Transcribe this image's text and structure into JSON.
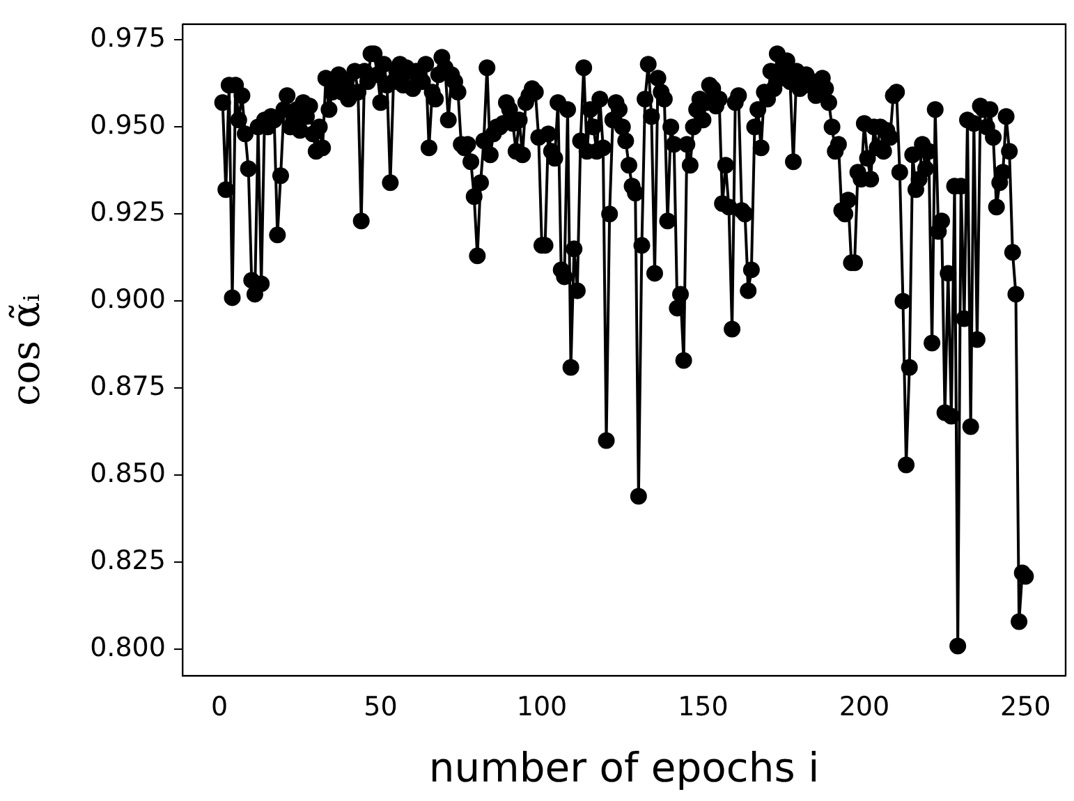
{
  "chart_data": {
    "type": "line",
    "xlabel": "number of epochs i",
    "ylabel": "cos α̃ᵢ",
    "marker": "circle",
    "line_style": "solid",
    "grid": false,
    "legend": false,
    "x": [
      1,
      2,
      3,
      4,
      5,
      6,
      7,
      8,
      9,
      10,
      11,
      12,
      13,
      14,
      15,
      16,
      17,
      18,
      19,
      20,
      21,
      22,
      23,
      24,
      25,
      26,
      27,
      28,
      29,
      30,
      31,
      32,
      33,
      34,
      35,
      36,
      37,
      38,
      39,
      40,
      41,
      42,
      43,
      44,
      45,
      46,
      47,
      48,
      49,
      50,
      51,
      52,
      53,
      54,
      55,
      56,
      57,
      58,
      59,
      60,
      61,
      62,
      63,
      64,
      65,
      66,
      67,
      68,
      69,
      70,
      71,
      72,
      73,
      74,
      75,
      76,
      77,
      78,
      79,
      80,
      81,
      82,
      83,
      84,
      85,
      86,
      87,
      88,
      89,
      90,
      91,
      92,
      93,
      94,
      95,
      96,
      97,
      98,
      99,
      100,
      101,
      102,
      103,
      104,
      105,
      106,
      107,
      108,
      109,
      110,
      111,
      112,
      113,
      114,
      115,
      116,
      117,
      118,
      119,
      120,
      121,
      122,
      123,
      124,
      125,
      126,
      127,
      128,
      129,
      130,
      131,
      132,
      133,
      134,
      135,
      136,
      137,
      138,
      139,
      140,
      141,
      142,
      143,
      144,
      145,
      146,
      147,
      148,
      149,
      150,
      151,
      152,
      153,
      154,
      155,
      156,
      157,
      158,
      159,
      160,
      161,
      162,
      163,
      164,
      165,
      166,
      167,
      168,
      169,
      170,
      171,
      172,
      173,
      174,
      175,
      176,
      177,
      178,
      179,
      180,
      181,
      182,
      183,
      184,
      185,
      186,
      187,
      188,
      189,
      190,
      191,
      192,
      193,
      194,
      195,
      196,
      197,
      198,
      199,
      200,
      201,
      202,
      203,
      204,
      205,
      206,
      207,
      208,
      209,
      210,
      211,
      212,
      213,
      214,
      215,
      216,
      217,
      218,
      219,
      220,
      221,
      222,
      223,
      224,
      225,
      226,
      227,
      228,
      229,
      230,
      231,
      232,
      233,
      234,
      235,
      236,
      237,
      238,
      239,
      240,
      241,
      242,
      243,
      244,
      245,
      246,
      247,
      248,
      249,
      250
    ],
    "values": [
      0.957,
      0.932,
      0.962,
      0.901,
      0.962,
      0.952,
      0.959,
      0.948,
      0.938,
      0.906,
      0.902,
      0.95,
      0.905,
      0.952,
      0.95,
      0.953,
      0.952,
      0.919,
      0.936,
      0.955,
      0.959,
      0.95,
      0.952,
      0.955,
      0.949,
      0.957,
      0.953,
      0.956,
      0.948,
      0.943,
      0.95,
      0.944,
      0.964,
      0.955,
      0.96,
      0.962,
      0.965,
      0.96,
      0.963,
      0.958,
      0.96,
      0.966,
      0.96,
      0.923,
      0.966,
      0.963,
      0.971,
      0.971,
      0.965,
      0.957,
      0.968,
      0.962,
      0.934,
      0.963,
      0.966,
      0.968,
      0.962,
      0.967,
      0.966,
      0.961,
      0.966,
      0.964,
      0.963,
      0.968,
      0.944,
      0.96,
      0.958,
      0.965,
      0.97,
      0.967,
      0.952,
      0.965,
      0.963,
      0.96,
      0.945,
      0.944,
      0.945,
      0.94,
      0.93,
      0.913,
      0.934,
      0.946,
      0.967,
      0.942,
      0.948,
      0.95,
      0.95,
      0.951,
      0.957,
      0.955,
      0.951,
      0.943,
      0.952,
      0.942,
      0.957,
      0.959,
      0.961,
      0.96,
      0.947,
      0.916,
      0.916,
      0.948,
      0.943,
      0.941,
      0.957,
      0.909,
      0.907,
      0.955,
      0.881,
      0.915,
      0.903,
      0.946,
      0.967,
      0.943,
      0.955,
      0.95,
      0.943,
      0.958,
      0.944,
      0.86,
      0.925,
      0.952,
      0.957,
      0.955,
      0.95,
      0.946,
      0.939,
      0.933,
      0.931,
      0.844,
      0.916,
      0.958,
      0.968,
      0.953,
      0.908,
      0.964,
      0.96,
      0.958,
      0.923,
      0.95,
      0.945,
      0.898,
      0.902,
      0.883,
      0.945,
      0.939,
      0.95,
      0.955,
      0.958,
      0.952,
      0.957,
      0.962,
      0.961,
      0.956,
      0.958,
      0.928,
      0.939,
      0.927,
      0.892,
      0.957,
      0.959,
      0.926,
      0.925,
      0.903,
      0.909,
      0.95,
      0.955,
      0.944,
      0.96,
      0.958,
      0.966,
      0.961,
      0.971,
      0.964,
      0.966,
      0.969,
      0.963,
      0.94,
      0.966,
      0.961,
      0.963,
      0.965,
      0.962,
      0.963,
      0.959,
      0.962,
      0.964,
      0.961,
      0.957,
      0.95,
      0.943,
      0.945,
      0.926,
      0.925,
      0.929,
      0.911,
      0.911,
      0.937,
      0.935,
      0.951,
      0.941,
      0.935,
      0.95,
      0.944,
      0.95,
      0.943,
      0.949,
      0.947,
      0.959,
      0.96,
      0.937,
      0.9,
      0.853,
      0.881,
      0.942,
      0.932,
      0.935,
      0.945,
      0.938,
      0.943,
      0.888,
      0.955,
      0.92,
      0.923,
      0.868,
      0.908,
      0.867,
      0.933,
      0.801,
      0.933,
      0.895,
      0.952,
      0.864,
      0.951,
      0.889,
      0.956,
      0.955,
      0.95,
      0.955,
      0.947,
      0.927,
      0.934,
      0.937,
      0.953,
      0.943,
      0.914,
      0.902,
      0.808,
      0.822,
      0.821
    ],
    "color": "#000000",
    "xlim": [
      -11.45,
      262.45
    ],
    "xticks": [
      0,
      50,
      100,
      150,
      200,
      250
    ],
    "ylim": [
      0.7925,
      0.9795
    ],
    "yticks": [
      {
        "value": 0.8,
        "label": "0.800"
      },
      {
        "value": 0.825,
        "label": "0.825"
      },
      {
        "value": 0.85,
        "label": "0.850"
      },
      {
        "value": 0.875,
        "label": "0.875"
      },
      {
        "value": 0.9,
        "label": "0.900"
      },
      {
        "value": 0.925,
        "label": "0.925"
      },
      {
        "value": 0.95,
        "label": "0.950"
      },
      {
        "value": 0.975,
        "label": "0.975"
      }
    ]
  }
}
